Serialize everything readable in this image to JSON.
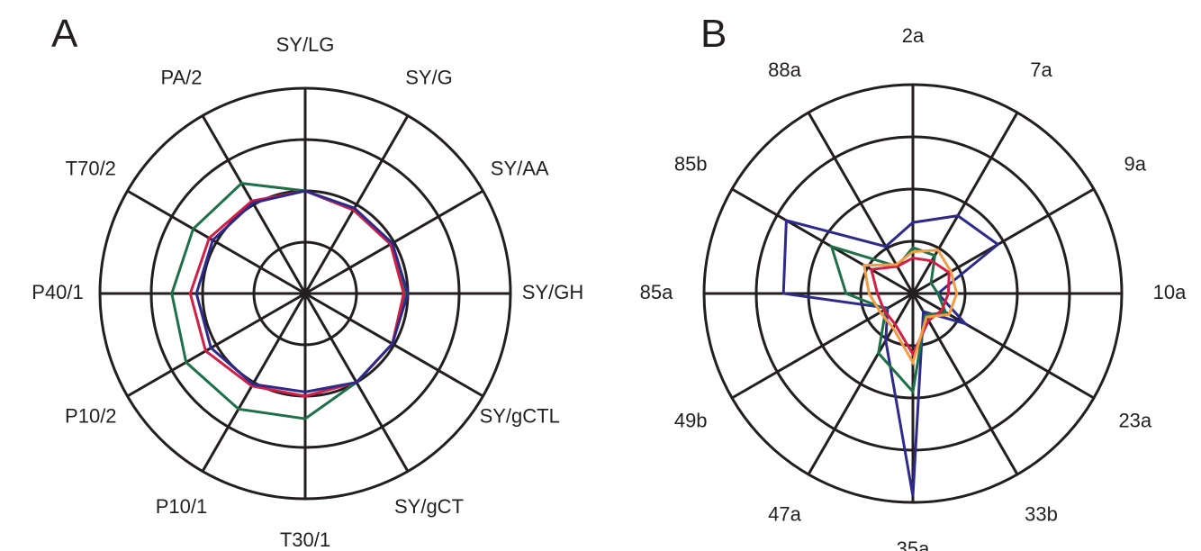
{
  "chart_data": [
    {
      "type": "radar",
      "panel_label": "A",
      "axes": [
        "SY/LG",
        "SY/G",
        "SY/AA",
        "SY/GH",
        "SY/gCTL",
        "SY/gCT",
        "T30/1",
        "P10/1",
        "P10/2",
        "P40/1",
        "T70/2",
        "PA/2"
      ],
      "rings": [
        0.25,
        0.5,
        0.75,
        1.0
      ],
      "series": [
        {
          "color": "#1e7048",
          "values": [
            0.5,
            0.47,
            0.48,
            0.49,
            0.49,
            0.5,
            0.61,
            0.65,
            0.67,
            0.65,
            0.63,
            0.62
          ]
        },
        {
          "color": "#d11f46",
          "values": [
            0.5,
            0.47,
            0.48,
            0.48,
            0.49,
            0.5,
            0.5,
            0.52,
            0.56,
            0.56,
            0.54,
            0.52
          ]
        },
        {
          "color": "#2e2a8c",
          "values": [
            0.5,
            0.48,
            0.49,
            0.5,
            0.49,
            0.5,
            0.48,
            0.51,
            0.53,
            0.53,
            0.52,
            0.51
          ]
        }
      ]
    },
    {
      "type": "radar",
      "panel_label": "B",
      "axes": [
        "2a",
        "7a",
        "9a",
        "10a",
        "23a",
        "33b",
        "35a",
        "47a",
        "49b",
        "85a",
        "85b",
        "88a"
      ],
      "rings": [
        0.25,
        0.5,
        0.75,
        1.0
      ],
      "series": [
        {
          "color": "#2e2a8c",
          "values": [
            0.34,
            0.43,
            0.47,
            0.12,
            0.29,
            0.1,
            0.97,
            0.26,
            0.14,
            0.62,
            0.7,
            0.26
          ]
        },
        {
          "color": "#1e7048",
          "values": [
            0.22,
            0.21,
            0.1,
            0.12,
            0.18,
            0.12,
            0.47,
            0.33,
            0.15,
            0.32,
            0.45,
            0.15
          ]
        },
        {
          "color": "#d11f46",
          "values": [
            0.17,
            0.18,
            0.2,
            0.17,
            0.16,
            0.15,
            0.29,
            0.17,
            0.16,
            0.17,
            0.23,
            0.15
          ]
        },
        {
          "color": "#f39c45",
          "values": [
            0.2,
            0.24,
            0.21,
            0.21,
            0.2,
            0.13,
            0.33,
            0.19,
            0.18,
            0.21,
            0.27,
            0.16
          ]
        }
      ]
    }
  ]
}
